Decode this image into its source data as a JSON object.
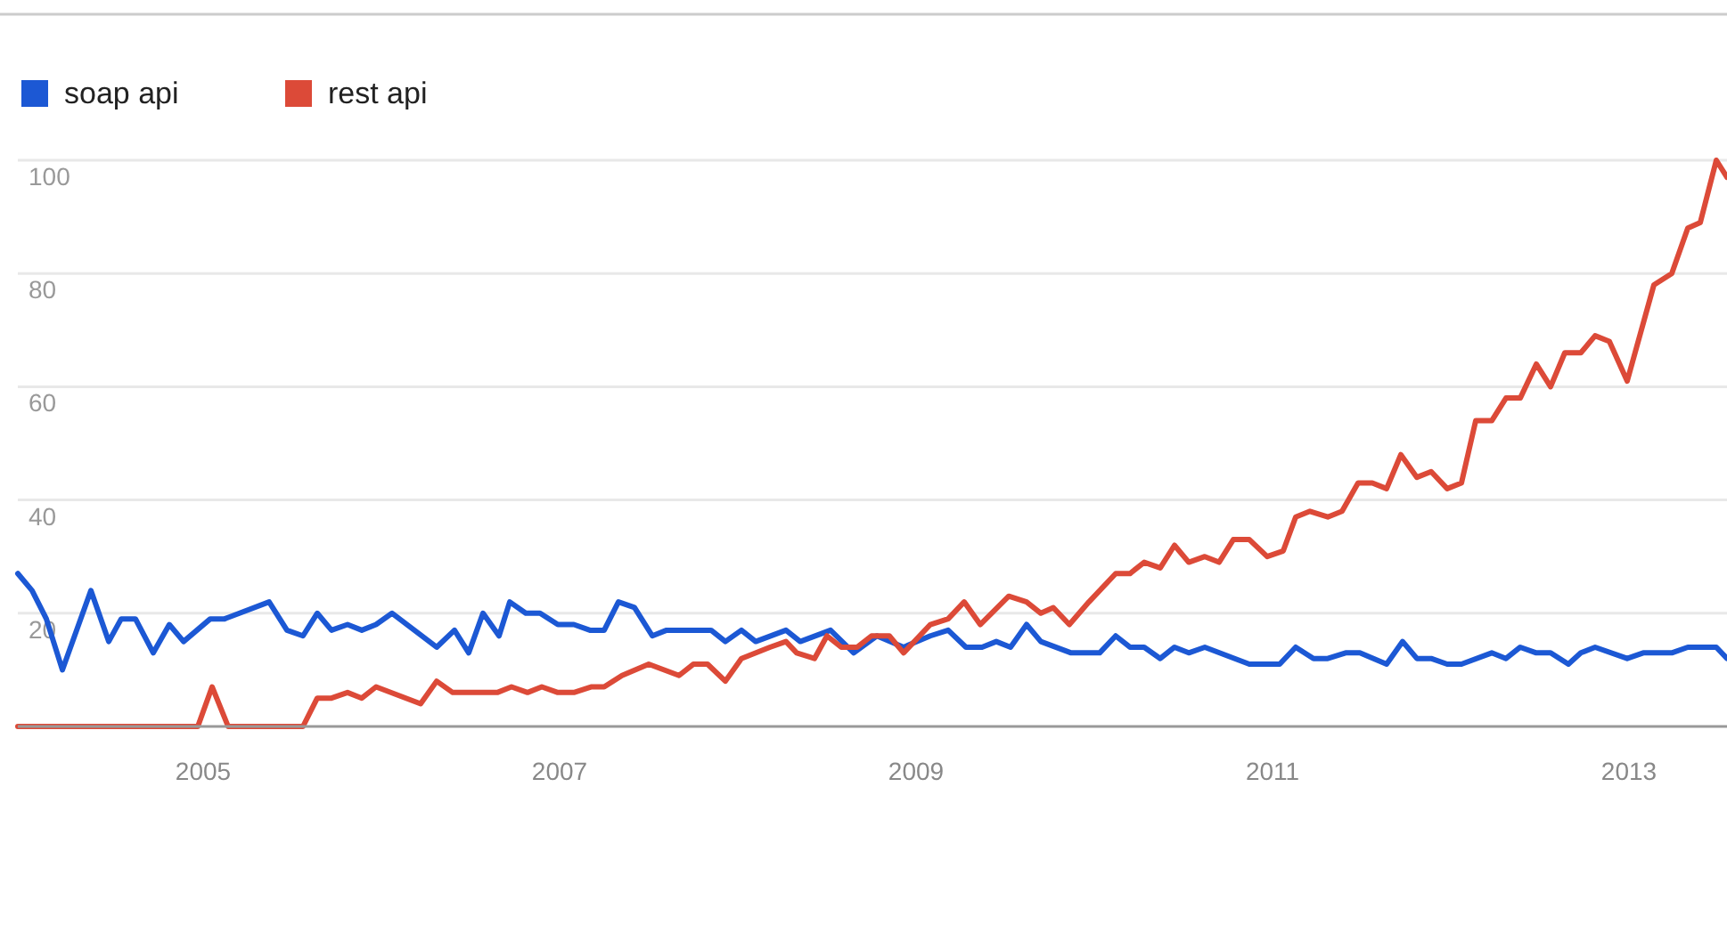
{
  "chart_data": {
    "type": "line",
    "xlim": [
      2003.96,
      2013.55
    ],
    "xticks": [
      2005,
      2007,
      2009,
      2011,
      2013
    ],
    "ylim": [
      0,
      100
    ],
    "yticks": [
      20,
      40,
      60,
      80,
      100
    ],
    "grid": "y",
    "legend": "top left",
    "marker": "none",
    "line_style": "solid",
    "series": [
      {
        "name": "soap api",
        "color": "#1c58d4",
        "x": [
          2003.96,
          2004.04,
          2004.12,
          2004.21,
          2004.37,
          2004.47,
          2004.54,
          2004.62,
          2004.72,
          2004.81,
          2004.89,
          2005.04,
          2005.12,
          2005.37,
          2005.47,
          2005.56,
          2005.64,
          2005.72,
          2005.81,
          2005.89,
          2005.97,
          2006.06,
          2006.31,
          2006.41,
          2006.49,
          2006.57,
          2006.66,
          2006.72,
          2006.81,
          2006.89,
          2006.99,
          2007.08,
          2007.17,
          2007.25,
          2007.33,
          2007.42,
          2007.52,
          2007.6,
          2007.85,
          2007.93,
          2008.02,
          2008.1,
          2008.27,
          2008.35,
          2008.52,
          2008.65,
          2008.78,
          2008.93,
          2009.08,
          2009.18,
          2009.28,
          2009.37,
          2009.45,
          2009.53,
          2009.62,
          2009.7,
          2009.87,
          2010.03,
          2010.12,
          2010.2,
          2010.28,
          2010.37,
          2010.45,
          2010.53,
          2010.62,
          2010.87,
          2011.04,
          2011.13,
          2011.23,
          2011.31,
          2011.41,
          2011.49,
          2011.64,
          2011.73,
          2011.81,
          2011.89,
          2011.98,
          2012.06,
          2012.23,
          2012.31,
          2012.39,
          2012.48,
          2012.56,
          2012.66,
          2012.73,
          2012.81,
          2012.99,
          2013.08,
          2013.24,
          2013.33,
          2013.49,
          2013.55
        ],
        "values": [
          27,
          24,
          19,
          10,
          24,
          15,
          19,
          19,
          13,
          18,
          15,
          19,
          19,
          22,
          17,
          16,
          20,
          17,
          18,
          17,
          18,
          20,
          14,
          17,
          13,
          20,
          16,
          22,
          20,
          20,
          18,
          18,
          17,
          17,
          22,
          21,
          16,
          17,
          17,
          15,
          17,
          15,
          17,
          15,
          17,
          13,
          16,
          14,
          16,
          17,
          14,
          14,
          15,
          14,
          18,
          15,
          13,
          13,
          16,
          14,
          14,
          12,
          14,
          13,
          14,
          11,
          11,
          14,
          12,
          12,
          13,
          13,
          11,
          15,
          12,
          12,
          11,
          11,
          13,
          12,
          14,
          13,
          13,
          11,
          13,
          14,
          12,
          13,
          13,
          14,
          14,
          12
        ]
      },
      {
        "name": "rest api",
        "color": "#dc4a38",
        "x": [
          2003.96,
          2004.97,
          2005.05,
          2005.14,
          2005.56,
          2005.64,
          2005.72,
          2005.81,
          2005.89,
          2005.97,
          2006.22,
          2006.31,
          2006.4,
          2006.65,
          2006.73,
          2006.82,
          2006.9,
          2006.99,
          2007.08,
          2007.18,
          2007.25,
          2007.35,
          2007.5,
          2007.67,
          2007.75,
          2007.83,
          2007.93,
          2008.02,
          2008.18,
          2008.27,
          2008.33,
          2008.43,
          2008.5,
          2008.58,
          2008.67,
          2008.75,
          2008.85,
          2008.93,
          2009.08,
          2009.18,
          2009.27,
          2009.36,
          2009.52,
          2009.62,
          2009.7,
          2009.77,
          2009.86,
          2009.97,
          2010.12,
          2010.2,
          2010.28,
          2010.37,
          2010.45,
          2010.53,
          2010.62,
          2010.7,
          2010.78,
          2010.87,
          2010.97,
          2011.06,
          2011.13,
          2011.21,
          2011.31,
          2011.39,
          2011.48,
          2011.56,
          2011.64,
          2011.72,
          2011.81,
          2011.89,
          2011.98,
          2012.06,
          2012.14,
          2012.23,
          2012.31,
          2012.39,
          2012.48,
          2012.56,
          2012.64,
          2012.73,
          2012.81,
          2012.89,
          2012.99,
          2013.14,
          2013.24,
          2013.33,
          2013.4,
          2013.49,
          2013.55
        ],
        "values": [
          0,
          0,
          7,
          0,
          0,
          5,
          5,
          6,
          5,
          7,
          4,
          8,
          6,
          6,
          7,
          6,
          7,
          6,
          6,
          7,
          7,
          9,
          11,
          9,
          11,
          11,
          8,
          12,
          14,
          15,
          13,
          12,
          16,
          14,
          14,
          16,
          16,
          13,
          18,
          19,
          22,
          18,
          23,
          22,
          20,
          21,
          18,
          22,
          27,
          27,
          29,
          28,
          32,
          29,
          30,
          29,
          33,
          33,
          30,
          31,
          37,
          38,
          37,
          38,
          43,
          43,
          42,
          48,
          44,
          45,
          42,
          43,
          54,
          54,
          58,
          58,
          64,
          60,
          66,
          66,
          69,
          68,
          61,
          78,
          80,
          88,
          89,
          100,
          97
        ]
      }
    ]
  }
}
